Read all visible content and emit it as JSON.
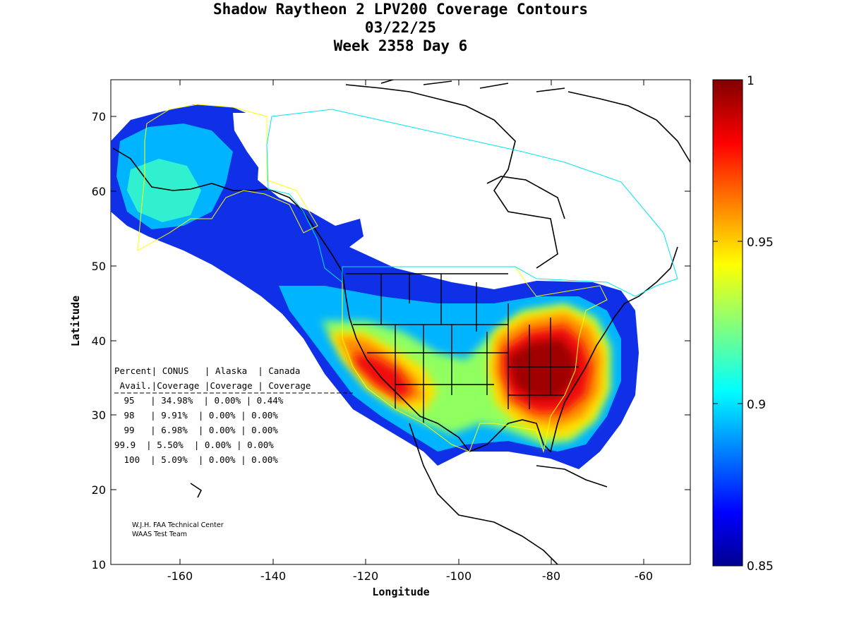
{
  "title": {
    "line1": "Shadow Raytheon 2 LPV200 Coverage Contours",
    "line2": "03/22/25",
    "line3": "Week 2358 Day 6"
  },
  "axes": {
    "xlabel": "Longitude",
    "ylabel": "Latitude",
    "xticks": [
      "-160",
      "-140",
      "-120",
      "-100",
      "-80",
      "-60"
    ],
    "yticks": [
      "70",
      "60",
      "50",
      "40",
      "30",
      "20",
      "10"
    ],
    "xlim": [
      -175,
      -50
    ],
    "ylim": [
      10,
      75
    ]
  },
  "colorbar": {
    "ticks": [
      "1",
      "0.95",
      "0.9",
      "0.85"
    ],
    "range": [
      0.85,
      1.0
    ],
    "colormap": "jet"
  },
  "stats_table": {
    "header1": "Percent| CONUS   | Alaska  | Canada",
    "header2": " Avail.|Coverage |Coverage | Coverage",
    "rows": [
      " 95   | 34.98%  | 0.00% | 0.44%",
      " 98   | 9.91%  | 0.00% | 0.00%",
      " 99   | 6.98%  | 0.00% | 0.00%",
      "99.9  | 5.50%  | 0.00% | 0.00%",
      " 100  | 5.09%  | 0.00% | 0.00%"
    ]
  },
  "credit": {
    "line1": "W.J.H. FAA Technical Center",
    "line2": "WAAS Test Team"
  },
  "colors": {
    "background": "#ffffff",
    "coastline": "#000000",
    "conus_boundary": "#ffff00",
    "canada_boundary": "#00e5ee"
  }
}
